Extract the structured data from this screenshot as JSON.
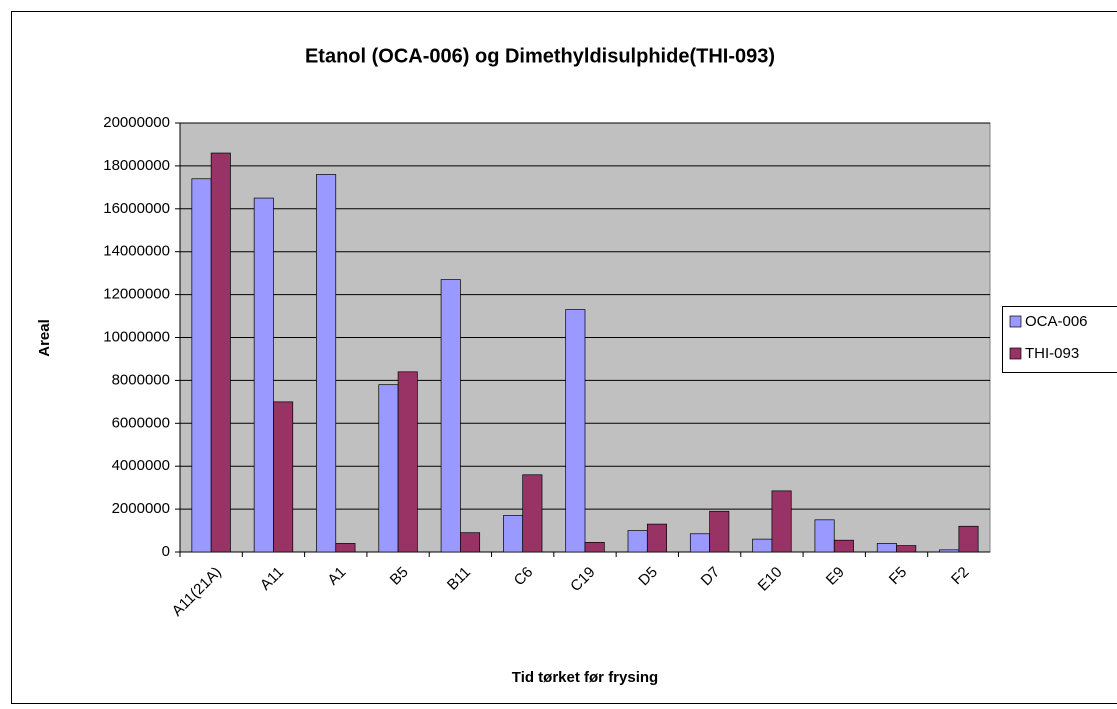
{
  "chart_data": {
    "type": "bar",
    "title": "Etanol (OCA-006) og Dimethyldisulphide(THI-093)",
    "xlabel": "Tid tørket før frysing",
    "ylabel": "Areal",
    "categories": [
      "A11(21A)",
      "A11",
      "A1",
      "B5",
      "B11",
      "C6",
      "C19",
      "D5",
      "D7",
      "E10",
      "E9",
      "F5",
      "F2"
    ],
    "series": [
      {
        "name": "OCA-006",
        "color": "#9999ff",
        "values": [
          17400000,
          16500000,
          17600000,
          7800000,
          12700000,
          1700000,
          11300000,
          1000000,
          850000,
          600000,
          1500000,
          400000,
          100000
        ]
      },
      {
        "name": "THI-093",
        "color": "#993366",
        "values": [
          18600000,
          7000000,
          400000,
          8400000,
          900000,
          3600000,
          450000,
          1300000,
          1900000,
          2850000,
          550000,
          300000,
          1200000
        ]
      }
    ],
    "ylim": [
      0,
      20000000
    ],
    "yticks": [
      0,
      2000000,
      4000000,
      6000000,
      8000000,
      10000000,
      12000000,
      14000000,
      16000000,
      18000000,
      20000000
    ],
    "grid": true,
    "legend": "right"
  }
}
